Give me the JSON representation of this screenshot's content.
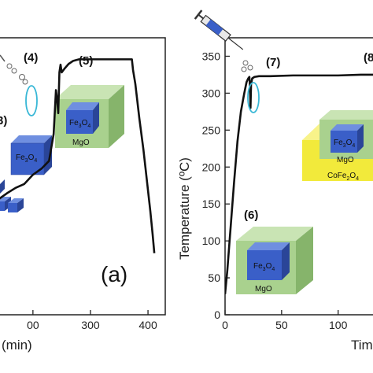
{
  "colors": {
    "curve": "#111111",
    "fe3o4_front": "#3a5fc8",
    "fe3o4_top": "#6f8fe0",
    "fe3o4_side": "#2a4598",
    "mgo_front": "#a9d18e",
    "mgo_top": "#c9e4b4",
    "mgo_side": "#86b46b",
    "cofe2o4_front": "#f2ea3b",
    "cofe2o4_top": "#f8f38a",
    "cofe2o4_side": "#d8ce1e",
    "highlight": "#38b7d6"
  },
  "chart_data": [
    {
      "type": "line",
      "panel_label": "(a)",
      "xlabel": "(min)",
      "x_ticks": [
        "00",
        "300",
        "400"
      ],
      "xlim": [
        140,
        430
      ],
      "ylim": [
        0,
        360
      ],
      "step_labels": [
        "3)",
        "(4)",
        "(5)"
      ],
      "series": [
        {
          "x": [
            140,
            155,
            170,
            185,
            200,
            215,
            228,
            236,
            240,
            242,
            244,
            246,
            248,
            250,
            255,
            262,
            270,
            280,
            290,
            310,
            330,
            350,
            365,
            372,
            374,
            378,
            385,
            392,
            398,
            404,
            408,
            411
          ],
          "y": [
            150,
            158,
            165,
            170,
            182,
            190,
            200,
            235,
            292,
            280,
            262,
            315,
            325,
            315,
            320,
            326,
            330,
            332,
            332,
            332,
            332,
            332,
            332,
            332,
            318,
            300,
            255,
            215,
            175,
            135,
            105,
            80
          ]
        }
      ],
      "cube_labels": {
        "core_shell": [
          "Fe3O4",
          "MgO"
        ],
        "core": "Fe3O4"
      }
    },
    {
      "type": "line",
      "ylabel": "Temperature (ºC)",
      "xlabel": "Tim",
      "x_ticks": [
        "0",
        "50",
        "100"
      ],
      "y_ticks": [
        "0",
        "50",
        "100",
        "150",
        "200",
        "250",
        "300",
        "350"
      ],
      "xlim": [
        0,
        135
      ],
      "ylim": [
        0,
        375
      ],
      "step_labels": [
        "(6)",
        "(7)",
        "(8"
      ],
      "series": [
        {
          "x": [
            0,
            2,
            5,
            8,
            11,
            14,
            17,
            19,
            20.5,
            21.5,
            22,
            22.5,
            23,
            24,
            26,
            30,
            40,
            60,
            80,
            100,
            120,
            135
          ],
          "y": [
            28,
            60,
            120,
            180,
            235,
            275,
            300,
            315,
            320,
            322,
            310,
            280,
            312,
            320,
            322,
            323,
            323,
            324,
            324,
            324,
            325,
            325
          ]
        }
      ],
      "cube_labels": {
        "core_shell": [
          "Fe3O4",
          "MgO"
        ],
        "core_shell_shell": [
          "Fe3O4",
          "MgO",
          "CoFe2O4"
        ]
      }
    }
  ]
}
